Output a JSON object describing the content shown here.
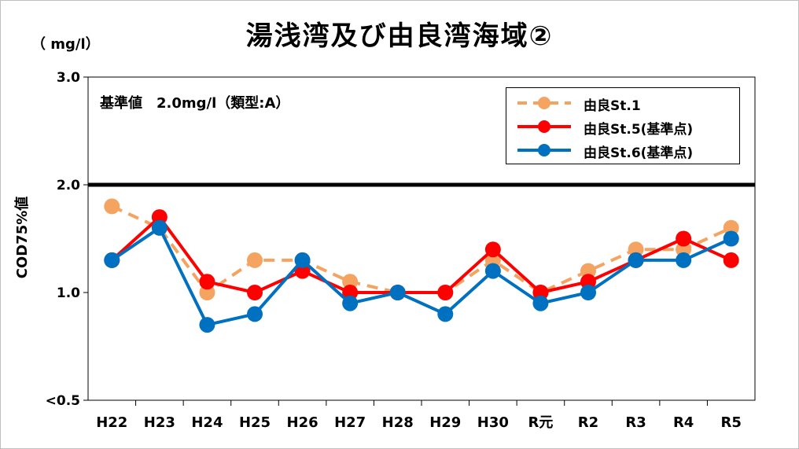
{
  "chart_data": {
    "type": "line",
    "title": "湯浅湾及び由良湾海域②",
    "unit_label": "（ mg/l）",
    "ylabel": "COD75%値",
    "y_ticks": [
      "3.0",
      "2.0",
      "1.0",
      "<0.5"
    ],
    "y_tick_values": [
      3.0,
      2.0,
      1.0,
      0.0
    ],
    "ylim": [
      0.0,
      3.0
    ],
    "categories": [
      "H22",
      "H23",
      "H24",
      "H25",
      "H26",
      "H27",
      "H28",
      "H29",
      "H30",
      "R元",
      "R2",
      "R3",
      "R4",
      "R5"
    ],
    "standard": {
      "label": "基準値　2.0mg/l（類型:A）",
      "value": 2.0
    },
    "legend_position": "top-right",
    "grid": false,
    "series": [
      {
        "name": "由良St.1",
        "color": "#f4a460",
        "dashed": true,
        "values": [
          1.8,
          1.6,
          1.0,
          1.3,
          1.3,
          1.1,
          1.0,
          1.0,
          1.3,
          1.0,
          1.2,
          1.4,
          1.4,
          1.6
        ]
      },
      {
        "name": "由良St.5(基準点)",
        "color": "#ff0000",
        "dashed": false,
        "values": [
          1.3,
          1.7,
          1.1,
          1.0,
          1.2,
          1.0,
          1.0,
          1.0,
          1.4,
          1.0,
          1.1,
          1.3,
          1.5,
          1.3
        ]
      },
      {
        "name": "由良St.6(基準点)",
        "color": "#0070c0",
        "dashed": false,
        "values": [
          1.3,
          1.6,
          0.7,
          0.8,
          1.3,
          0.9,
          1.0,
          0.8,
          1.2,
          0.9,
          1.0,
          1.3,
          1.3,
          1.5
        ]
      }
    ]
  }
}
